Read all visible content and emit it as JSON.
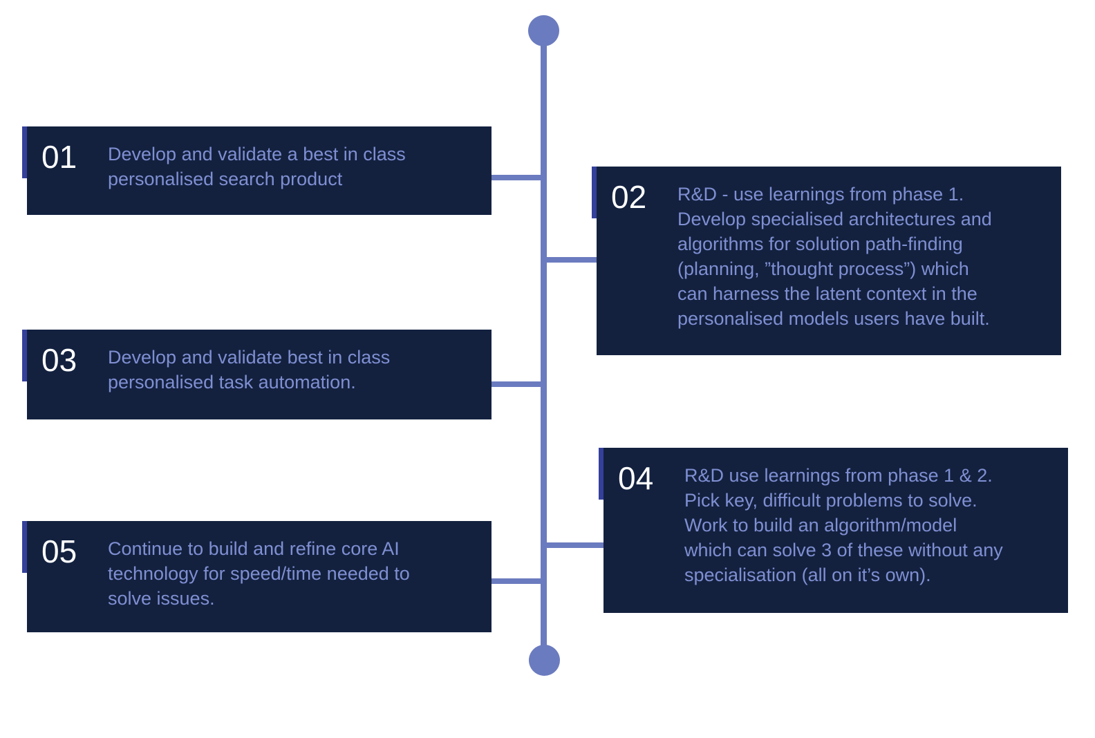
{
  "phases": [
    {
      "number": "01",
      "lines": [
        "Develop and validate a best in class",
        "personalised search product"
      ]
    },
    {
      "number": "02",
      "lines": [
        "R&D - use learnings from phase 1.",
        "Develop specialised architectures and",
        "algorithms for solution path-finding",
        "(planning, ”thought process”) which",
        "can harness the latent context in the",
        "personalised models users have built."
      ]
    },
    {
      "number": "03",
      "lines": [
        "Develop and validate best in class",
        "personalised task automation."
      ]
    },
    {
      "number": "04",
      "lines": [
        "R&D use learnings from phase 1 & 2.",
        "Pick key, difficult problems to solve.",
        "Work to build an algorithm/model",
        "which can solve 3 of these without any",
        "specialisation (all on it’s own)."
      ]
    },
    {
      "number": "05",
      "lines": [
        "Continue to build and refine core AI",
        "technology for speed/time needed to",
        "solve issues."
      ]
    }
  ],
  "colors": {
    "card_background": "#13213f",
    "accent": "#34409a",
    "line": "#6b7bbf",
    "body_text": "#7f8fd2",
    "number_text": "#ffffff"
  }
}
